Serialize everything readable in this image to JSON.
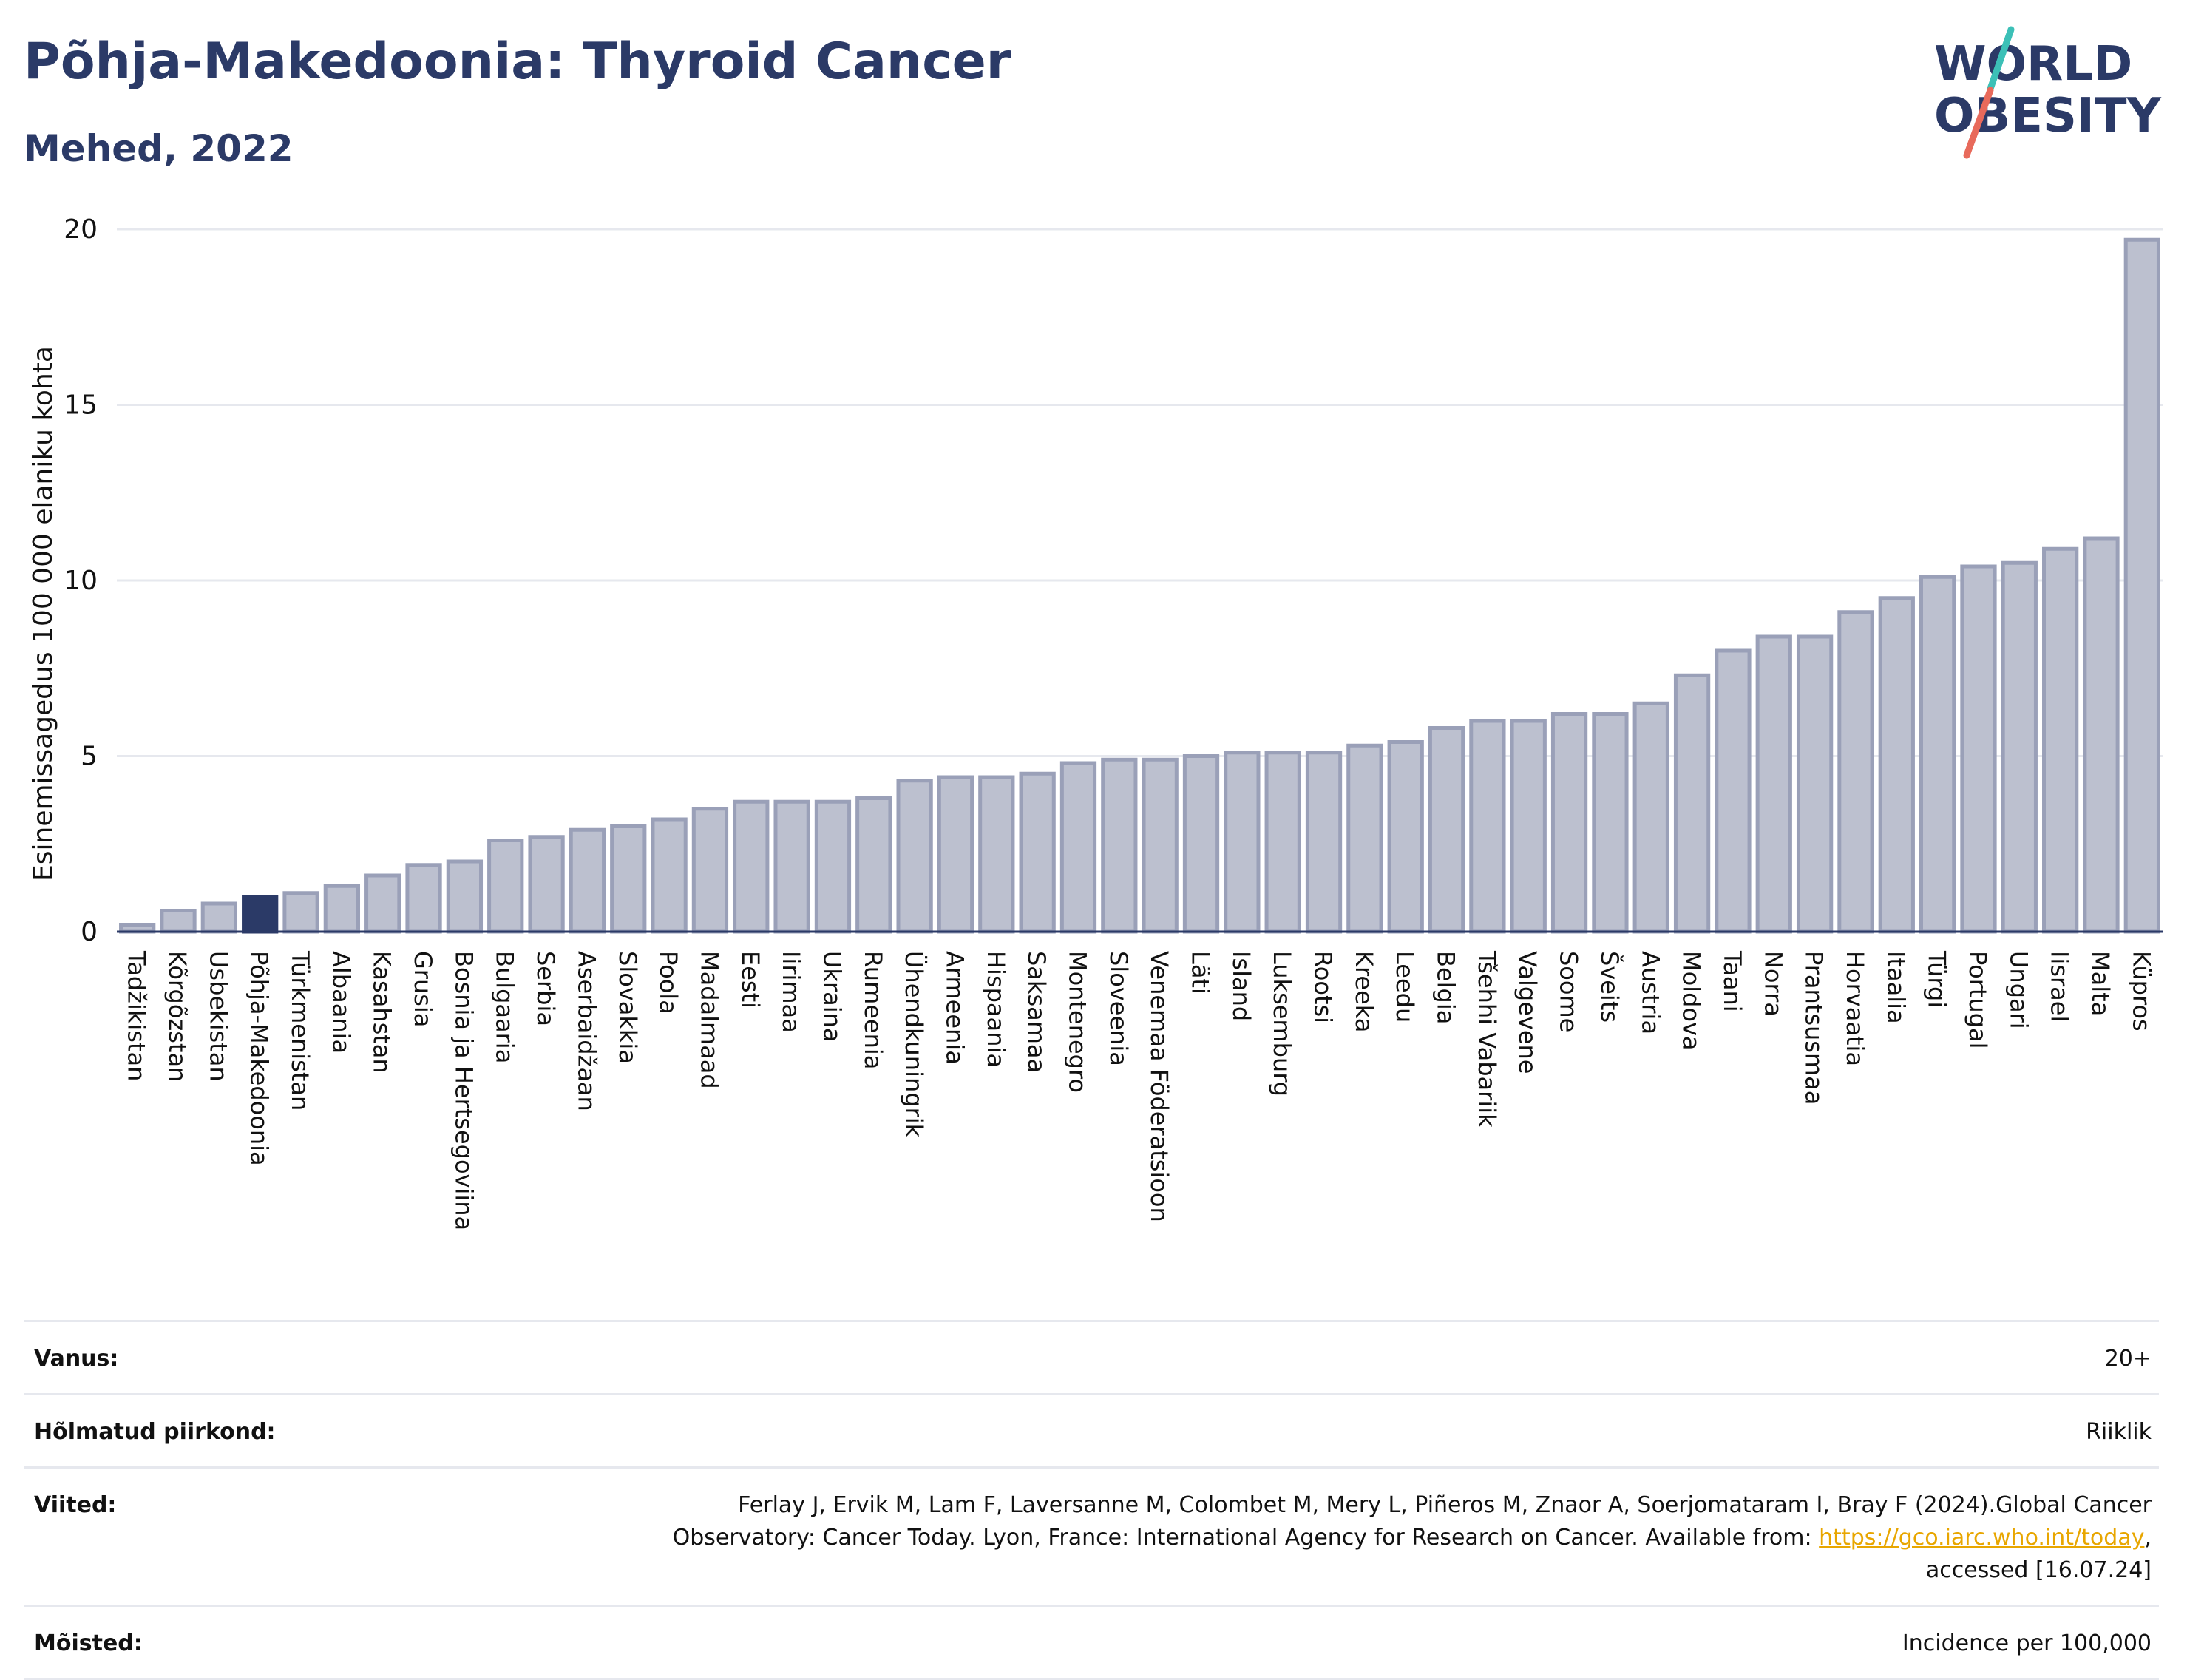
{
  "header": {
    "title": "Põhja-Makedoonia: Thyroid Cancer",
    "subtitle": "Mehed, 2022"
  },
  "logo": {
    "line1": "WORLD",
    "line2": "OBESITY",
    "slash_colors": [
      "#3cc0b7",
      "#e86a5b"
    ],
    "text_color": "#2b3a67"
  },
  "colors": {
    "bar": "#bcc0cf",
    "bar_stroke": "#9aa0b8",
    "highlight": "#2b3a67",
    "axis": "#2b3a67",
    "grid": "#e6e8ee"
  },
  "chart_data": {
    "type": "bar",
    "ylabel": "Esinemissagedus 100 000 elaniku kohta",
    "ylim": [
      0,
      20
    ],
    "yticks": [
      0,
      5,
      10,
      15,
      20
    ],
    "grid": true,
    "highlight": "Põhja-Makedoonia",
    "categories": [
      "Tadžikistan",
      "Kõrgõzstan",
      "Usbekistan",
      "Põhja-Makedoonia",
      "Türkmenistan",
      "Albaania",
      "Kasahstan",
      "Grusia",
      "Bosnia ja Hertsegoviina",
      "Bulgaaria",
      "Serbia",
      "Aserbaidžaan",
      "Slovakkia",
      "Poola",
      "Madalmaad",
      "Eesti",
      "Iirimaa",
      "Ukraina",
      "Rumeenia",
      "Ühendkuningrik",
      "Armeenia",
      "Hispaania",
      "Saksamaa",
      "Montenegro",
      "Sloveenia",
      "Venemaa Föderatsioon",
      "Läti",
      "Island",
      "Luksemburg",
      "Rootsi",
      "Kreeka",
      "Leedu",
      "Belgia",
      "Tšehhi Vabariik",
      "Valgevene",
      "Soome",
      "Šveits",
      "Austria",
      "Moldova",
      "Taani",
      "Norra",
      "Prantsusmaa",
      "Horvaatia",
      "Itaalia",
      "Türgi",
      "Portugal",
      "Ungari",
      "Iisrael",
      "Malta",
      "Küpros"
    ],
    "values": [
      0.2,
      0.6,
      0.8,
      1.0,
      1.1,
      1.3,
      1.6,
      1.9,
      2.0,
      2.6,
      2.7,
      2.9,
      3.0,
      3.2,
      3.5,
      3.7,
      3.7,
      3.7,
      3.8,
      4.3,
      4.4,
      4.4,
      4.5,
      4.8,
      4.9,
      4.9,
      5.0,
      5.1,
      5.1,
      5.1,
      5.3,
      5.4,
      5.8,
      6.0,
      6.0,
      6.2,
      6.2,
      6.5,
      7.3,
      8.0,
      8.4,
      8.4,
      9.1,
      9.5,
      10.1,
      10.4,
      10.5,
      10.9,
      11.2,
      19.7
    ]
  },
  "info": [
    {
      "label": "Vanus:",
      "value": "20+"
    },
    {
      "label": "Hõlmatud piirkond:",
      "value": "Riiklik"
    },
    {
      "label": "Viited:",
      "line1": "Ferlay J, Ervik M, Lam F, Laversanne M, Colombet M, Mery L, Piñeros M, Znaor A, Soerjomataram I, Bray F (2024).Global Cancer",
      "line2_pre": "Observatory: Cancer Today. Lyon, France: International Agency for Research on Cancer. Available from: ",
      "link": "https://gco.iarc.who.int/today",
      "line2_post": ",",
      "line3": "accessed [16.07.24]"
    },
    {
      "label": "Mõisted:",
      "value": "Incidence per 100,000"
    }
  ]
}
